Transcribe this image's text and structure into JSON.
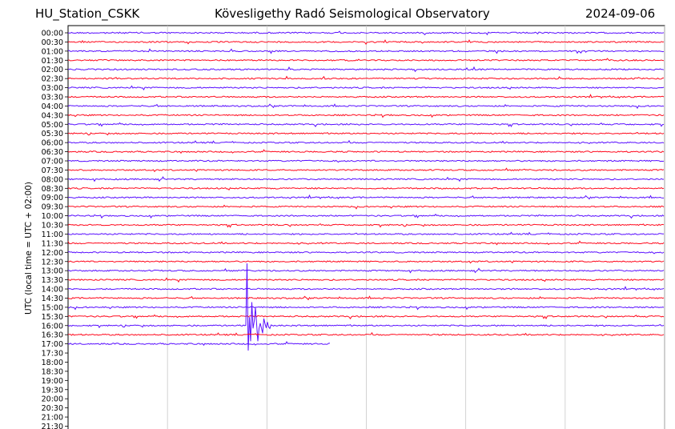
{
  "header": {
    "station": "HU_Station_CSKK",
    "observatory": "Kövesligethy Radó Seismological Observatory",
    "date": "2024-09-06"
  },
  "chart_data": {
    "type": "line",
    "title": "Kövesligethy Radó Seismological Observatory",
    "ylabel": "UTC (local time = UTC + 02:00)",
    "xlabel": "",
    "tick_labels": [
      "00:00",
      "00:30",
      "01:00",
      "01:30",
      "02:00",
      "02:30",
      "03:00",
      "03:30",
      "04:00",
      "04:30",
      "05:00",
      "05:30",
      "06:00",
      "06:30",
      "07:00",
      "07:30",
      "08:00",
      "08:30",
      "09:00",
      "09:30",
      "10:00",
      "10:30",
      "11:00",
      "11:30",
      "12:00",
      "12:30",
      "13:00",
      "13:30",
      "14:00",
      "14:30",
      "15:00",
      "15:30",
      "16:00",
      "16:30",
      "17:00",
      "17:30",
      "18:00",
      "18:30",
      "19:00",
      "19:30",
      "20:00",
      "20:30",
      "21:00",
      "21:30"
    ],
    "traces_recorded": 35,
    "series_colors": [
      "#5a10ff",
      "#ff0a1e"
    ],
    "grid": "vertical gridlines",
    "x_gridlines": 6,
    "events": [
      {
        "trace": "16:00",
        "position": 0.3,
        "amplitude": 1.0,
        "description": "large earthquake arrival"
      },
      {
        "trace": "17:00",
        "position": 0.4,
        "amplitude": 0.15,
        "description": "coda ending trace"
      }
    ]
  }
}
